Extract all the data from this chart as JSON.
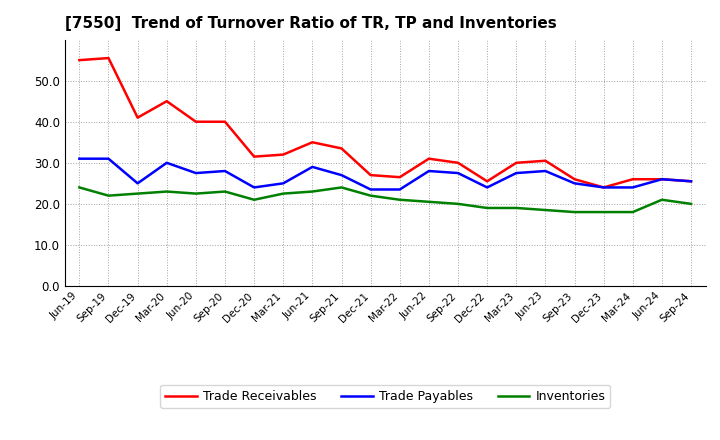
{
  "title": "[7550]  Trend of Turnover Ratio of TR, TP and Inventories",
  "x_labels": [
    "Jun-19",
    "Sep-19",
    "Dec-19",
    "Mar-20",
    "Jun-20",
    "Sep-20",
    "Dec-20",
    "Mar-21",
    "Jun-21",
    "Sep-21",
    "Dec-21",
    "Mar-22",
    "Jun-22",
    "Sep-22",
    "Dec-22",
    "Mar-23",
    "Jun-23",
    "Sep-23",
    "Dec-23",
    "Mar-24",
    "Jun-24",
    "Sep-24"
  ],
  "trade_receivables": [
    55.0,
    55.5,
    41.0,
    45.0,
    40.0,
    40.0,
    31.5,
    32.0,
    35.0,
    33.5,
    27.0,
    26.5,
    31.0,
    30.0,
    25.5,
    30.0,
    30.5,
    26.0,
    24.0,
    26.0,
    26.0,
    25.5
  ],
  "trade_payables": [
    31.0,
    31.0,
    25.0,
    30.0,
    27.5,
    28.0,
    24.0,
    25.0,
    29.0,
    27.0,
    23.5,
    23.5,
    28.0,
    27.5,
    24.0,
    27.5,
    28.0,
    25.0,
    24.0,
    24.0,
    26.0,
    25.5
  ],
  "inventories": [
    24.0,
    22.0,
    22.5,
    23.0,
    22.5,
    23.0,
    21.0,
    22.5,
    23.0,
    24.0,
    22.0,
    21.0,
    20.5,
    20.0,
    19.0,
    19.0,
    18.5,
    18.0,
    18.0,
    18.0,
    21.0,
    20.0
  ],
  "tr_color": "#ff0000",
  "tp_color": "#0000ff",
  "inv_color": "#008000",
  "ylim": [
    0,
    60
  ],
  "yticks": [
    0.0,
    10.0,
    20.0,
    30.0,
    40.0,
    50.0
  ],
  "background_color": "#ffffff",
  "grid_color": "#999999",
  "legend_labels": [
    "Trade Receivables",
    "Trade Payables",
    "Inventories"
  ]
}
